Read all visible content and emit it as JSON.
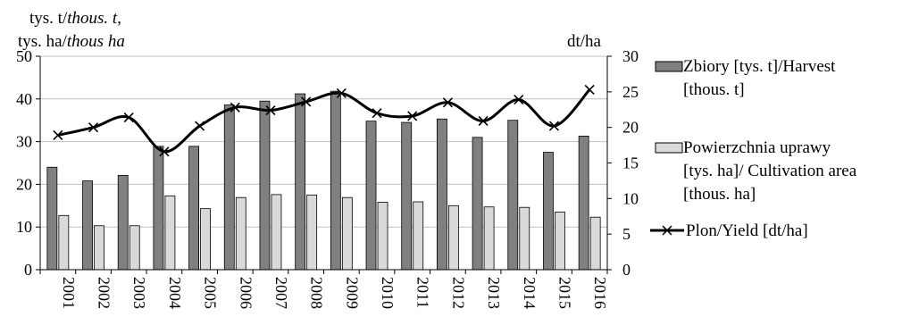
{
  "chart_data": {
    "type": "bar",
    "title": "",
    "left_axis_label": {
      "line1_plain": "tys. t/",
      "line1_italic": "thous. t",
      "line1_suffix": ",",
      "line2_plain": "tys. ha/",
      "line2_italic": "thous ha"
    },
    "right_axis_label": "dt/ha",
    "categories": [
      "2001",
      "2002",
      "2003",
      "2004",
      "2005",
      "2006",
      "2007",
      "2008",
      "2009",
      "2010",
      "2011",
      "2012",
      "2013",
      "2014",
      "2015",
      "2016"
    ],
    "y_left": {
      "min": 0,
      "max": 50,
      "ticks": [
        0,
        10,
        20,
        30,
        40,
        50
      ]
    },
    "y_right": {
      "min": 0,
      "max": 30,
      "ticks": [
        0,
        5,
        10,
        15,
        20,
        25,
        30
      ]
    },
    "grid": "horizontal",
    "series": [
      {
        "name": "Zbiory [tys. t]/Harvest [thous. t]",
        "legend_lines": [
          "Zbiory [tys. t]/Harvest",
          "[thous. t]"
        ],
        "kind": "bar",
        "axis": "left",
        "color": "#808080",
        "values": [
          24,
          20.8,
          22.1,
          28.9,
          28.9,
          38.6,
          39.5,
          41.2,
          41.8,
          34.8,
          34.5,
          35.3,
          31,
          35,
          27.5,
          31.3
        ]
      },
      {
        "name": "Powierzchnia uprawy [tys. ha]/ Cultivation area [thous. ha]",
        "legend_lines": [
          "Powierzchnia uprawy",
          "[tys. ha]/ Cultivation area",
          "[thous. ha]"
        ],
        "kind": "bar",
        "axis": "left",
        "color": "#d9d9d9",
        "values": [
          12.7,
          10.3,
          10.3,
          17.3,
          14.3,
          16.9,
          17.6,
          17.5,
          16.9,
          15.8,
          15.9,
          15,
          14.7,
          14.6,
          13.5,
          12.3
        ]
      },
      {
        "name": "Plon/Yield [dt/ha]",
        "legend_lines": [
          "Plon/Yield [dt/ha]"
        ],
        "kind": "line",
        "axis": "right",
        "color": "#000000",
        "marker": "x",
        "values": [
          18.9,
          20,
          21.4,
          16.6,
          20.2,
          22.8,
          22.4,
          23.6,
          24.8,
          22,
          21.6,
          23.5,
          20.9,
          23.9,
          20.2,
          25.3
        ]
      }
    ]
  }
}
